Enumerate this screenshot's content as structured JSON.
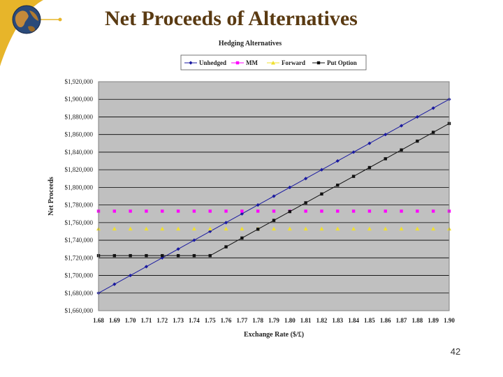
{
  "slide": {
    "title": "Net Proceeds of Alternatives",
    "page_number": "42"
  },
  "colors": {
    "title": "#5a3a12",
    "plot_area": "#c0c0c0",
    "decor_gold": "#e7b52a"
  },
  "icons": {
    "logo": "globe-logo-icon"
  },
  "chart_data": {
    "type": "line",
    "title": "Hedging Alternatives",
    "xlabel": "Exchange Rate ($/£)",
    "ylabel": "Net Proceeds",
    "legend_position": "top",
    "grid": true,
    "categories": [
      "1.68",
      "1.69",
      "1.70",
      "1.71",
      "1.72",
      "1.73",
      "1.74",
      "1.75",
      "1.76",
      "1.77",
      "1.78",
      "1.79",
      "1.80",
      "1.81",
      "1.82",
      "1.83",
      "1.84",
      "1.85",
      "1.86",
      "1.87",
      "1.88",
      "1.89",
      "1.90"
    ],
    "y_ticks": [
      "$1,660,000",
      "$1,680,000",
      "$1,700,000",
      "$1,720,000",
      "$1,740,000",
      "$1,760,000",
      "$1,780,000",
      "$1,800,000",
      "$1,820,000",
      "$1,840,000",
      "$1,860,000",
      "$1,880,000",
      "$1,900,000",
      "$1,920,000"
    ],
    "ylim": [
      1660000,
      1920000
    ],
    "series": [
      {
        "name": "Unhedged",
        "color": "#1a1aa0",
        "marker": "diamond",
        "line": true,
        "values": [
          1680000,
          1690000,
          1700000,
          1710000,
          1720000,
          1730000,
          1740000,
          1750000,
          1760000,
          1770000,
          1780000,
          1790000,
          1800000,
          1810000,
          1820000,
          1830000,
          1840000,
          1850000,
          1860000,
          1870000,
          1880000,
          1890000,
          1900000
        ]
      },
      {
        "name": "MM",
        "color": "#ff00ff",
        "marker": "square",
        "line": false,
        "values": [
          1773000,
          1773000,
          1773000,
          1773000,
          1773000,
          1773000,
          1773000,
          1773000,
          1773000,
          1773000,
          1773000,
          1773000,
          1773000,
          1773000,
          1773000,
          1773000,
          1773000,
          1773000,
          1773000,
          1773000,
          1773000,
          1773000,
          1773000
        ]
      },
      {
        "name": "Forward",
        "color": "#f0e030",
        "marker": "triangle",
        "line": false,
        "values": [
          1753000,
          1753000,
          1753000,
          1753000,
          1753000,
          1753000,
          1753000,
          1753000,
          1753000,
          1753000,
          1753000,
          1753000,
          1753000,
          1753000,
          1753000,
          1753000,
          1753000,
          1753000,
          1753000,
          1753000,
          1753000,
          1753000,
          1753000
        ]
      },
      {
        "name": "Put Option",
        "color": "#111111",
        "marker": "square",
        "line": true,
        "values": [
          1722500,
          1722500,
          1722500,
          1722500,
          1722500,
          1722500,
          1722500,
          1722500,
          1732500,
          1742500,
          1752500,
          1762500,
          1772500,
          1782500,
          1792500,
          1802500,
          1812500,
          1822500,
          1832500,
          1842500,
          1852500,
          1862500,
          1872500
        ]
      }
    ]
  }
}
